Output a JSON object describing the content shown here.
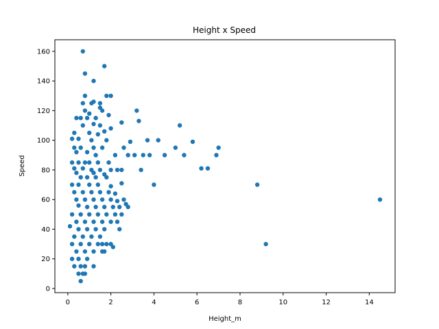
{
  "chart_data": {
    "type": "scatter",
    "title": "Height x Speed",
    "xlabel": "Height_m",
    "ylabel": "Speed",
    "xlim": [
      -0.6,
      15.2
    ],
    "ylim": [
      -2.8,
      167.8
    ],
    "xticks": [
      0,
      2,
      4,
      6,
      8,
      10,
      12,
      14
    ],
    "yticks": [
      0,
      20,
      40,
      60,
      80,
      100,
      120,
      140,
      160
    ],
    "grid": false,
    "marker_color": "#1f77b4",
    "series": [
      {
        "values": [
          [
            0.7,
            160
          ],
          [
            1.7,
            150
          ],
          [
            0.8,
            145
          ],
          [
            1.2,
            140
          ],
          [
            0.8,
            130
          ],
          [
            1.8,
            130
          ],
          [
            2.0,
            130
          ],
          [
            1.1,
            125
          ],
          [
            1.2,
            126
          ],
          [
            0.7,
            125
          ],
          [
            1.5,
            125
          ],
          [
            1.5,
            122
          ],
          [
            1.6,
            120
          ],
          [
            0.8,
            120
          ],
          [
            3.2,
            120
          ],
          [
            1.0,
            118
          ],
          [
            1.9,
            117
          ],
          [
            0.4,
            115
          ],
          [
            0.6,
            115
          ],
          [
            0.9,
            115
          ],
          [
            1.3,
            115
          ],
          [
            3.3,
            113
          ],
          [
            2.5,
            112
          ],
          [
            1.2,
            111
          ],
          [
            0.7,
            110
          ],
          [
            1.5,
            110
          ],
          [
            5.2,
            110
          ],
          [
            2.0,
            108
          ],
          [
            1.7,
            106
          ],
          [
            0.3,
            105
          ],
          [
            1.0,
            105
          ],
          [
            1.4,
            104
          ],
          [
            0.2,
            101
          ],
          [
            0.5,
            101
          ],
          [
            1.1,
            100
          ],
          [
            1.8,
            100
          ],
          [
            4.2,
            100
          ],
          [
            3.7,
            100
          ],
          [
            5.8,
            99
          ],
          [
            2.9,
            99
          ],
          [
            0.3,
            95
          ],
          [
            0.6,
            95
          ],
          [
            1.2,
            95
          ],
          [
            1.6,
            95
          ],
          [
            2.6,
            95
          ],
          [
            5.0,
            95
          ],
          [
            7.0,
            95
          ],
          [
            0.4,
            92
          ],
          [
            0.9,
            92
          ],
          [
            1.3,
            90
          ],
          [
            2.2,
            90
          ],
          [
            2.8,
            90
          ],
          [
            3.1,
            90
          ],
          [
            3.5,
            90
          ],
          [
            3.8,
            90
          ],
          [
            4.5,
            90
          ],
          [
            5.4,
            90
          ],
          [
            6.9,
            90
          ],
          [
            0.2,
            85
          ],
          [
            0.5,
            85
          ],
          [
            0.8,
            85
          ],
          [
            1.0,
            85
          ],
          [
            1.4,
            85
          ],
          [
            1.9,
            85
          ],
          [
            0.3,
            81
          ],
          [
            0.7,
            81
          ],
          [
            1.1,
            80
          ],
          [
            1.5,
            80
          ],
          [
            2.0,
            80
          ],
          [
            2.3,
            80
          ],
          [
            2.5,
            80
          ],
          [
            3.4,
            80
          ],
          [
            6.2,
            81
          ],
          [
            6.5,
            81
          ],
          [
            0.4,
            78
          ],
          [
            1.2,
            78
          ],
          [
            1.7,
            77
          ],
          [
            0.6,
            75
          ],
          [
            0.9,
            75
          ],
          [
            1.3,
            75
          ],
          [
            1.8,
            75
          ],
          [
            2.5,
            71
          ],
          [
            0.2,
            70
          ],
          [
            0.5,
            70
          ],
          [
            1.0,
            70
          ],
          [
            1.4,
            70
          ],
          [
            2.0,
            69
          ],
          [
            4.0,
            70
          ],
          [
            8.8,
            70
          ],
          [
            0.3,
            65
          ],
          [
            0.7,
            65
          ],
          [
            1.1,
            65
          ],
          [
            1.5,
            65
          ],
          [
            1.9,
            65
          ],
          [
            2.2,
            64
          ],
          [
            0.4,
            60
          ],
          [
            0.8,
            60
          ],
          [
            1.2,
            60
          ],
          [
            1.6,
            60
          ],
          [
            2.0,
            60
          ],
          [
            2.3,
            59
          ],
          [
            2.6,
            60
          ],
          [
            14.5,
            60
          ],
          [
            2.7,
            57
          ],
          [
            2.8,
            55
          ],
          [
            0.5,
            56
          ],
          [
            0.9,
            55
          ],
          [
            1.3,
            55
          ],
          [
            1.7,
            55
          ],
          [
            2.1,
            55
          ],
          [
            2.4,
            55
          ],
          [
            0.2,
            50
          ],
          [
            0.6,
            50
          ],
          [
            1.0,
            50
          ],
          [
            1.4,
            50
          ],
          [
            1.8,
            50
          ],
          [
            2.2,
            50
          ],
          [
            2.5,
            50
          ],
          [
            0.4,
            45
          ],
          [
            0.8,
            45
          ],
          [
            1.2,
            45
          ],
          [
            1.6,
            45
          ],
          [
            2.0,
            45
          ],
          [
            2.3,
            45
          ],
          [
            0.1,
            42
          ],
          [
            0.5,
            40
          ],
          [
            0.9,
            40
          ],
          [
            1.3,
            40
          ],
          [
            1.7,
            40
          ],
          [
            2.4,
            40
          ],
          [
            0.3,
            35
          ],
          [
            0.7,
            35
          ],
          [
            1.1,
            35
          ],
          [
            1.5,
            35
          ],
          [
            0.2,
            30
          ],
          [
            0.6,
            30
          ],
          [
            1.0,
            30
          ],
          [
            1.4,
            30
          ],
          [
            1.6,
            30
          ],
          [
            1.8,
            30
          ],
          [
            2.0,
            30
          ],
          [
            2.1,
            28
          ],
          [
            9.2,
            30
          ],
          [
            0.4,
            25
          ],
          [
            0.8,
            25
          ],
          [
            1.2,
            25
          ],
          [
            1.6,
            25
          ],
          [
            1.7,
            25
          ],
          [
            0.2,
            20
          ],
          [
            0.5,
            20
          ],
          [
            0.9,
            20
          ],
          [
            0.3,
            15
          ],
          [
            0.6,
            15
          ],
          [
            0.8,
            15
          ],
          [
            1.2,
            15
          ],
          [
            0.5,
            10
          ],
          [
            0.7,
            10
          ],
          [
            0.8,
            10
          ],
          [
            0.6,
            5
          ]
        ]
      }
    ]
  }
}
